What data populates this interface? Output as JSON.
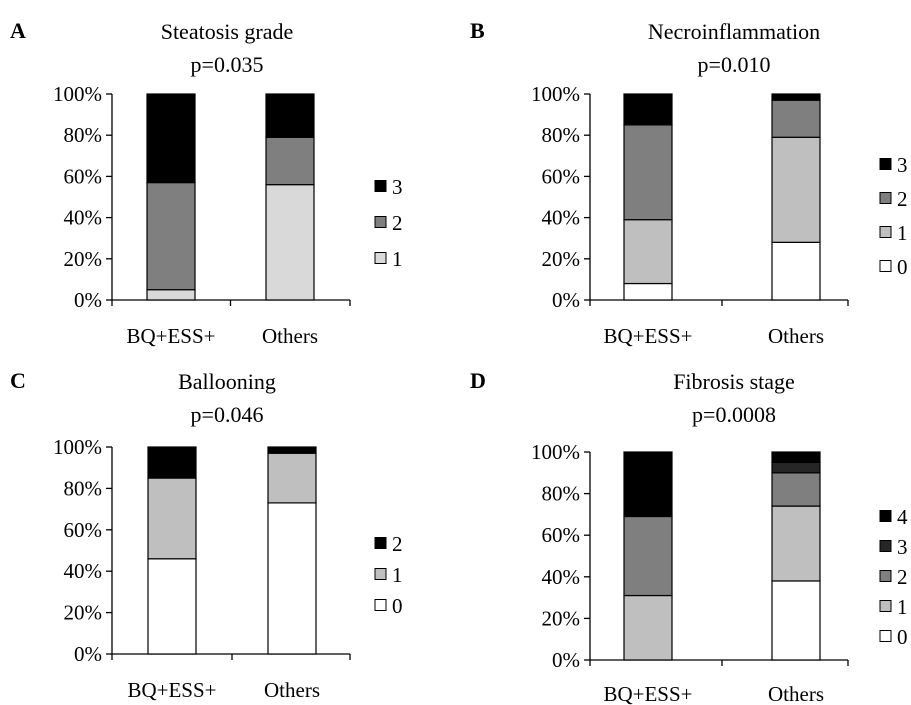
{
  "chart_data": [
    {
      "type": "bar",
      "stacked": true,
      "panel": "A",
      "title": "Steatosis grade",
      "subtitle": "p=0.035",
      "categories": [
        "BQ+ESS+",
        "Others"
      ],
      "yticks": [
        "0%",
        "20%",
        "40%",
        "60%",
        "80%",
        "100%"
      ],
      "ylim": [
        0,
        100
      ],
      "legend_position": "right",
      "series": [
        {
          "name": "1",
          "color": "#d9d9d9",
          "values": [
            5,
            56
          ]
        },
        {
          "name": "2",
          "color": "#7f7f7f",
          "values": [
            52,
            23
          ]
        },
        {
          "name": "3",
          "color": "#000000",
          "values": [
            43,
            21
          ]
        }
      ]
    },
    {
      "type": "bar",
      "stacked": true,
      "panel": "B",
      "title": "Necroinflammation",
      "subtitle": "p=0.010",
      "categories": [
        "BQ+ESS+",
        "Others"
      ],
      "yticks": [
        "0%",
        "20%",
        "40%",
        "60%",
        "80%",
        "100%"
      ],
      "ylim": [
        0,
        100
      ],
      "legend_position": "right",
      "series": [
        {
          "name": "0",
          "color": "#ffffff",
          "values": [
            8,
            28
          ]
        },
        {
          "name": "1",
          "color": "#bfbfbf",
          "values": [
            31,
            51
          ]
        },
        {
          "name": "2",
          "color": "#7f7f7f",
          "values": [
            46,
            18
          ]
        },
        {
          "name": "3",
          "color": "#000000",
          "values": [
            15,
            3
          ]
        }
      ]
    },
    {
      "type": "bar",
      "stacked": true,
      "panel": "C",
      "title": "Ballooning",
      "subtitle": "p=0.046",
      "categories": [
        "BQ+ESS+",
        "Others"
      ],
      "yticks": [
        "0%",
        "20%",
        "40%",
        "60%",
        "80%",
        "100%"
      ],
      "ylim": [
        0,
        100
      ],
      "legend_position": "right",
      "series": [
        {
          "name": "0",
          "color": "#ffffff",
          "values": [
            46,
            73
          ]
        },
        {
          "name": "1",
          "color": "#bfbfbf",
          "values": [
            39,
            24
          ]
        },
        {
          "name": "2",
          "color": "#000000",
          "values": [
            15,
            3
          ]
        }
      ]
    },
    {
      "type": "bar",
      "stacked": true,
      "panel": "D",
      "title": "Fibrosis stage",
      "subtitle": "p=0.0008",
      "categories": [
        "BQ+ESS+",
        "Others"
      ],
      "yticks": [
        "0%",
        "20%",
        "40%",
        "60%",
        "80%",
        "100%"
      ],
      "ylim": [
        0,
        100
      ],
      "legend_position": "right",
      "series": [
        {
          "name": "0",
          "color": "#ffffff",
          "values": [
            0,
            38
          ]
        },
        {
          "name": "1",
          "color": "#bfbfbf",
          "values": [
            31,
            36
          ]
        },
        {
          "name": "2",
          "color": "#7f7f7f",
          "values": [
            38,
            16
          ]
        },
        {
          "name": "3",
          "color": "#262626",
          "values": [
            0,
            5
          ]
        },
        {
          "name": "4",
          "color": "#000000",
          "values": [
            31,
            5
          ]
        }
      ]
    }
  ]
}
